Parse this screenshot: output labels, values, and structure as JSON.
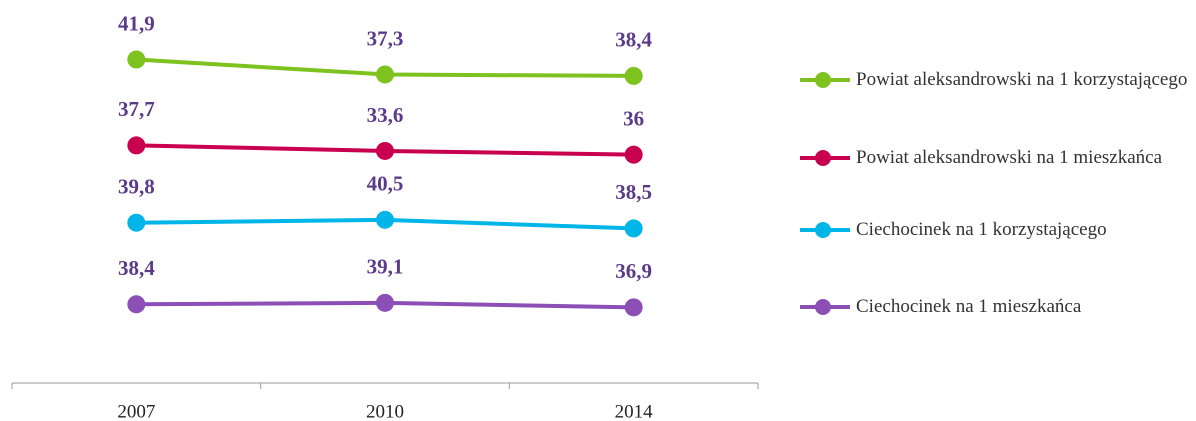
{
  "chart_data": {
    "type": "line",
    "stacked": true,
    "categories": [
      "2007",
      "2010",
      "2014"
    ],
    "series": [
      {
        "name": "Powiat aleksandrowski na 1 korzystającego",
        "color": "#7dc21e",
        "values": [
          41.9,
          37.3,
          38.4
        ],
        "value_labels": [
          "41,9",
          "37,3",
          "38,4"
        ]
      },
      {
        "name": "Powiat aleksandrowski na 1 mieszkańca",
        "color": "#c8004f",
        "values": [
          37.7,
          33.6,
          36
        ],
        "value_labels": [
          "37,7",
          "33,6",
          "36"
        ]
      },
      {
        "name": "Ciechocinek na 1 korzystającego",
        "color": "#00b5e8",
        "values": [
          39.8,
          40.5,
          38.5
        ],
        "value_labels": [
          "39,8",
          "40,5",
          "38,5"
        ]
      },
      {
        "name": "Ciechocinek na 1 mieszkańca",
        "color": "#8b4fb5",
        "values": [
          38.4,
          39.1,
          36.9
        ],
        "value_labels": [
          "38,4",
          "39,1",
          "36,9"
        ]
      }
    ],
    "ylim": [
      0,
      180
    ],
    "legend": "right"
  }
}
